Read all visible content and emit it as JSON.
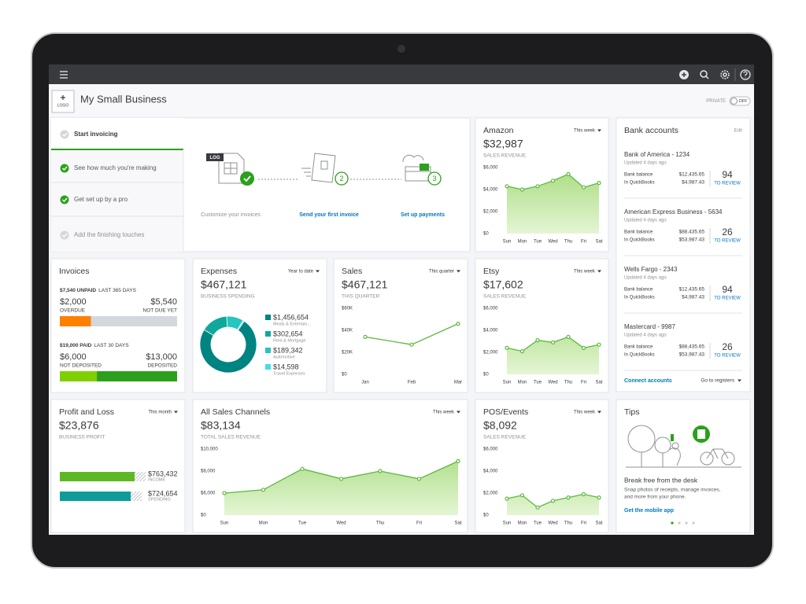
{
  "header": {
    "logo": "LOGO",
    "business_name": "My Small Business",
    "privacy_label": "PRIVATE",
    "toggle": "OFF"
  },
  "setup": {
    "steps": [
      {
        "label": "Start invoicing",
        "done": false
      },
      {
        "label": "See how much you're making",
        "done": true
      },
      {
        "label": "Get set up by a pro",
        "done": true
      },
      {
        "label": "Add the finishing touches",
        "done": false
      }
    ],
    "tasks": [
      {
        "label": "Customize your invoices",
        "badge": "LOG"
      },
      {
        "label": "Send your first invoice",
        "step": 2
      },
      {
        "label": "Set up payments",
        "step": 3
      }
    ]
  },
  "amazon": {
    "title": "Amazon",
    "period": "This week",
    "amount": "$32,987",
    "caption": "SALES REVENUE",
    "chart": {
      "type": "area",
      "color": "#5cb83c",
      "categories": [
        "Sun",
        "Mon",
        "Tue",
        "Wed",
        "Thu",
        "Fri",
        "Sat"
      ],
      "values": [
        4300,
        4000,
        4300,
        4800,
        5400,
        4200,
        4600
      ],
      "ylim": [
        0,
        6000
      ],
      "yticks": [
        {
          "value": 0,
          "label": "$0"
        },
        {
          "value": 2000,
          "label": "$2,000"
        },
        {
          "value": 4000,
          "label": "$4,000"
        },
        {
          "value": 6000,
          "label": "$6,000"
        }
      ]
    }
  },
  "bank": {
    "title": "Bank accounts",
    "edit": "Edit",
    "balance_label": "Bank balance",
    "quickbooks_label": "In QuickBooks",
    "review_label": "TO REVIEW",
    "accounts": [
      {
        "name": "Bank of America - 1234",
        "updated": "Updated 4 days ago",
        "bank_balance": "$12,435.65",
        "quickbooks": "$4,987.43",
        "review": 94
      },
      {
        "name": "American Express Business - 5634",
        "updated": "Updated 4 days ago",
        "bank_balance": "$88,435.65",
        "quickbooks": "$53,987.43",
        "review": 26
      },
      {
        "name": "Wells Fargo - 2343",
        "updated": "Updated 4 days ago",
        "bank_balance": "$12,435.65",
        "quickbooks": "$4,987.43",
        "review": 94
      },
      {
        "name": "Mastercard - 9987",
        "updated": "Updated 4 days ago",
        "bank_balance": "$88,435.65",
        "quickbooks": "$53,987.43",
        "review": 26
      }
    ],
    "connect": "Connect accounts",
    "registers": "Go to registers"
  },
  "invoices": {
    "title": "Invoices",
    "unpaid": {
      "total": "$7,540 UNPAID",
      "period": "LAST 365 DAYS",
      "parts": [
        {
          "amount": {
            "value": 2000,
            "label": "$2,000"
          },
          "label": "OVERDUE",
          "color": "#ff8000"
        },
        {
          "amount": {
            "value": 5540,
            "label": "$5,540"
          },
          "label": "NOT DUE YET",
          "color": "#d4d7dc"
        }
      ]
    },
    "paid": {
      "total": "$19,000 PAID",
      "period": "LAST 30 DAYS",
      "parts": [
        {
          "amount": {
            "value": 6000,
            "label": "$6,000"
          },
          "label": "NOT DEPOSITED",
          "color": "#7fd000"
        },
        {
          "amount": {
            "value": 13000,
            "label": "$13,000"
          },
          "label": "DEPOSITED",
          "color": "#2ca01c"
        }
      ]
    }
  },
  "expenses": {
    "title": "Expenses",
    "period": "Year to date",
    "amount": "$467,121",
    "caption": "BUSINESS SPENDING",
    "categories": [
      {
        "amount": {
          "value": 1456654,
          "label": "$1,456,654"
        },
        "label": "Meals & Entertain...",
        "color": "#008481"
      },
      {
        "amount": {
          "value": 302654,
          "label": "$302,654"
        },
        "label": "Rent & Mortgage",
        "color": "#10a89d"
      },
      {
        "amount": {
          "value": 189342,
          "label": "$189,342"
        },
        "label": "Automotive",
        "color": "#26c5bd"
      },
      {
        "amount": {
          "value": 14598,
          "label": "$14,598"
        },
        "label": "Travel Expenses",
        "color": "#3ee0e6"
      }
    ]
  },
  "sales": {
    "title": "Sales",
    "period": "This quarter",
    "amount": "$467,121",
    "caption": "THIS QUARTER",
    "chart": {
      "type": "line",
      "color": "#5cb83c",
      "categories": [
        "Jan",
        "Feb",
        "Mar"
      ],
      "values": [
        34000,
        27000,
        46000
      ],
      "ylim": [
        0,
        60000
      ],
      "yticks": [
        {
          "value": 0,
          "label": "$0"
        },
        {
          "value": 20000,
          "label": "$20K"
        },
        {
          "value": 40000,
          "label": "$40K"
        },
        {
          "value": 60000,
          "label": "$60K"
        }
      ]
    }
  },
  "etsy": {
    "title": "Etsy",
    "period": "This week",
    "amount": "$17,602",
    "caption": "SALES REVENUE",
    "chart": {
      "type": "area",
      "color": "#5cb83c",
      "categories": [
        "Sun",
        "Mon",
        "Tue",
        "Wed",
        "Thu",
        "Fri",
        "Sat"
      ],
      "values": [
        2400,
        2100,
        3100,
        2900,
        3400,
        2400,
        2700
      ],
      "ylim": [
        0,
        6000
      ],
      "yticks": [
        {
          "value": 0,
          "label": "$0"
        },
        {
          "value": 2000,
          "label": "$2,000"
        },
        {
          "value": 4000,
          "label": "$4,000"
        },
        {
          "value": 6000,
          "label": "$6,000"
        }
      ]
    }
  },
  "profit_loss": {
    "title": "Profit and Loss",
    "period": "This month",
    "amount": "$23,876",
    "caption": "BUSINESS PROFIT",
    "bars": [
      {
        "amount": {
          "value": 763432,
          "label": "$763,432"
        },
        "label": "INCOME",
        "color": "#5eb823"
      },
      {
        "amount": {
          "value": 724654,
          "label": "$724,654"
        },
        "label": "SPENDING",
        "color": "#0d9c9a"
      }
    ]
  },
  "all_sales": {
    "title": "All Sales Channels",
    "period": "This week",
    "amount": "$83,134",
    "caption": "TOTAL SALES REVENUE",
    "chart": {
      "type": "area",
      "color": "#5cb83c",
      "categories": [
        "Sun",
        "Mon",
        "Tue",
        "Wed",
        "Thu",
        "Fri",
        "Sat"
      ],
      "values": [
        6000,
        6300,
        8200,
        7300,
        8000,
        7300,
        8900
      ],
      "ylim": [
        0,
        10000
      ],
      "yticks": [
        {
          "value": 0,
          "label": "$0"
        },
        {
          "value": 6000,
          "label": "$6,000"
        },
        {
          "value": 8000,
          "label": "$8,000"
        },
        {
          "value": 10000,
          "label": "$10,000"
        }
      ]
    }
  },
  "pos": {
    "title": "POS/Events",
    "period": "This week",
    "amount": "$8,092",
    "caption": "SALES REVENUE",
    "chart": {
      "type": "area",
      "color": "#5cb83c",
      "categories": [
        "Sun",
        "Mon",
        "Tue",
        "Wed",
        "Thu",
        "Fri",
        "Sat"
      ],
      "values": [
        1500,
        1800,
        700,
        1300,
        1600,
        1900,
        1600
      ],
      "ylim": [
        0,
        6000
      ],
      "yticks": [
        {
          "value": 0,
          "label": "$0"
        },
        {
          "value": 2000,
          "label": "$2,000"
        },
        {
          "value": 4000,
          "label": "$4,000"
        },
        {
          "value": 6000,
          "label": "$6,000"
        }
      ]
    }
  },
  "tips": {
    "title": "Tips",
    "heading": "Break free from the desk",
    "lines": [
      "Snap photos of receipts, manage invoices,",
      "and more from your phone."
    ],
    "link": "Get the mobile app"
  }
}
